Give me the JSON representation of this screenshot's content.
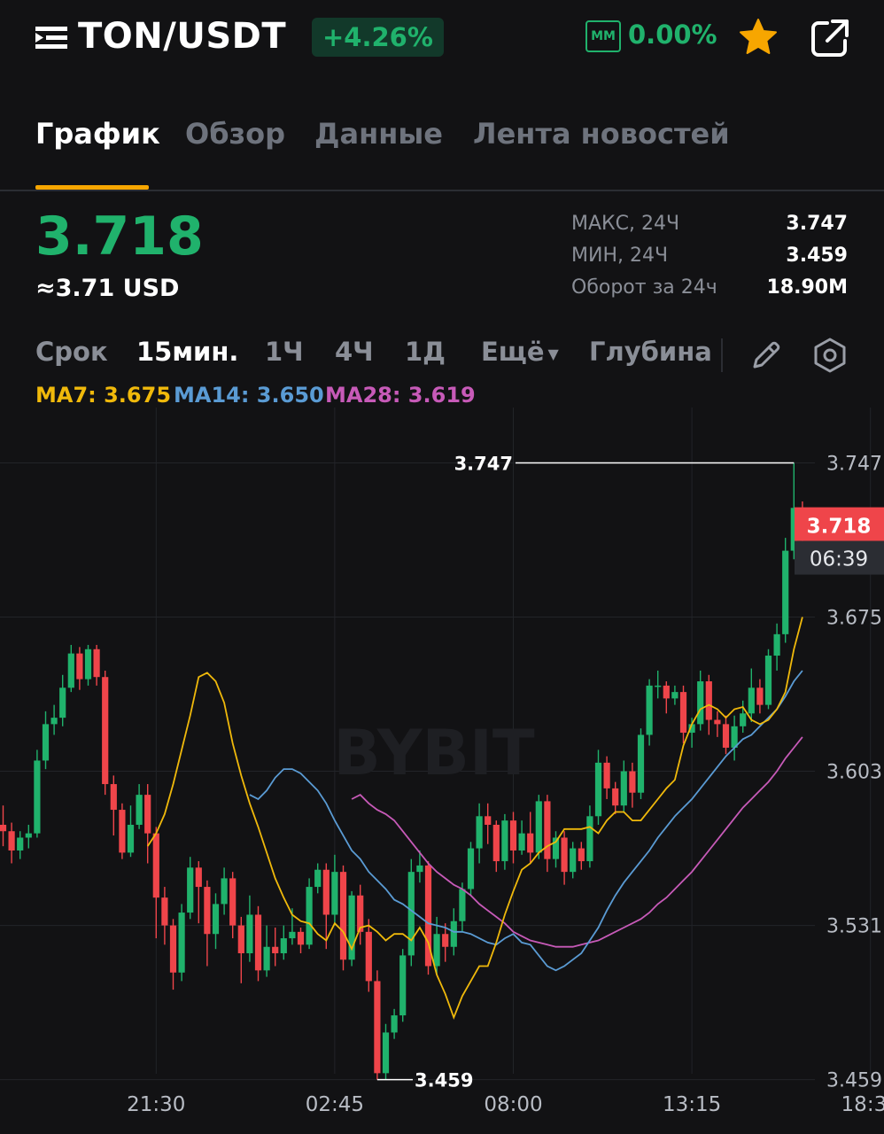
{
  "header": {
    "pair": "TON/USDT",
    "change": "+4.26%",
    "mm_label": "MM",
    "mm_value": "0.00%"
  },
  "tabs": [
    {
      "label": "График",
      "active": true
    },
    {
      "label": "Обзор",
      "active": false
    },
    {
      "label": "Данные",
      "active": false
    },
    {
      "label": "Лента новостей",
      "active": false
    }
  ],
  "price": {
    "last": "3.718",
    "usd": "≈3.71 USD"
  },
  "stats": [
    {
      "label": "МАКС, 24Ч",
      "value": "3.747"
    },
    {
      "label": "МИН, 24Ч",
      "value": "3.459"
    },
    {
      "label": "Оборот за 24ч",
      "value": "18.90M"
    }
  ],
  "intervals": {
    "label": "Срок",
    "items": [
      "15мин.",
      "1Ч",
      "4Ч",
      "1Д"
    ],
    "active": "15мин.",
    "more": "Ещё",
    "depth": "Глубина"
  },
  "ma": [
    {
      "label": "MA7: 3.675",
      "color": "#f0b90b"
    },
    {
      "label": "MA14: 3.650",
      "color": "#5a9bd4"
    },
    {
      "label": "MA28: 3.619",
      "color": "#c75ab8"
    }
  ],
  "colors": {
    "up": "#20b26c",
    "down": "#ef454a",
    "ma7": "#f0b90b",
    "ma14": "#5a9bd4",
    "ma28": "#c75ab8"
  },
  "chart_data": {
    "type": "candlestick",
    "title": "TON/USDT 15мин.",
    "watermark": "BYBIT",
    "ylim": [
      3.44,
      3.765
    ],
    "y_ticks": [
      "3.747",
      "3.675",
      "3.603",
      "3.531",
      "3.459"
    ],
    "y_tick_values": [
      3.747,
      3.675,
      3.603,
      3.531,
      3.459
    ],
    "x_ticks": [
      "21:30",
      "02:45",
      "08:00",
      "13:15",
      "18:30"
    ],
    "x_tick_index": [
      18,
      39,
      60,
      81,
      102
    ],
    "high_label": "3.747",
    "low_label": "3.459",
    "current_price": "3.718",
    "countdown": "06:39",
    "candles": [
      [
        3.578,
        3.575,
        3.587,
        3.568
      ],
      [
        3.575,
        3.566,
        3.579,
        3.56
      ],
      [
        3.566,
        3.572,
        3.575,
        3.562
      ],
      [
        3.572,
        3.574,
        3.578,
        3.567
      ],
      [
        3.574,
        3.608,
        3.613,
        3.572
      ],
      [
        3.608,
        3.625,
        3.631,
        3.604
      ],
      [
        3.625,
        3.628,
        3.634,
        3.62
      ],
      [
        3.628,
        3.642,
        3.648,
        3.624
      ],
      [
        3.642,
        3.658,
        3.662,
        3.64
      ],
      [
        3.658,
        3.646,
        3.661,
        3.641
      ],
      [
        3.646,
        3.66,
        3.662,
        3.643
      ],
      [
        3.66,
        3.647,
        3.662,
        3.643
      ],
      [
        3.647,
        3.597,
        3.65,
        3.592
      ],
      [
        3.597,
        3.585,
        3.601,
        3.573
      ],
      [
        3.585,
        3.565,
        3.588,
        3.562
      ],
      [
        3.565,
        3.578,
        3.587,
        3.563
      ],
      [
        3.578,
        3.592,
        3.597,
        3.576
      ],
      [
        3.592,
        3.574,
        3.597,
        3.56
      ],
      [
        3.574,
        3.544,
        3.577,
        3.525
      ],
      [
        3.544,
        3.531,
        3.549,
        3.522
      ],
      [
        3.531,
        3.509,
        3.534,
        3.501
      ],
      [
        3.509,
        3.537,
        3.541,
        3.505
      ],
      [
        3.537,
        3.558,
        3.563,
        3.534
      ],
      [
        3.558,
        3.549,
        3.561,
        3.532
      ],
      [
        3.549,
        3.527,
        3.552,
        3.512
      ],
      [
        3.527,
        3.541,
        3.546,
        3.52
      ],
      [
        3.541,
        3.553,
        3.558,
        3.536
      ],
      [
        3.553,
        3.531,
        3.556,
        3.525
      ],
      [
        3.531,
        3.518,
        3.535,
        3.504
      ],
      [
        3.518,
        3.536,
        3.545,
        3.514
      ],
      [
        3.536,
        3.51,
        3.54,
        3.505
      ],
      [
        3.51,
        3.521,
        3.531,
        3.507
      ],
      [
        3.521,
        3.518,
        3.53,
        3.512
      ],
      [
        3.518,
        3.525,
        3.531,
        3.515
      ],
      [
        3.525,
        3.528,
        3.539,
        3.522
      ],
      [
        3.528,
        3.522,
        3.53,
        3.518
      ],
      [
        3.522,
        3.549,
        3.553,
        3.52
      ],
      [
        3.549,
        3.557,
        3.56,
        3.546
      ],
      [
        3.557,
        3.536,
        3.56,
        3.52
      ],
      [
        3.536,
        3.556,
        3.564,
        3.531
      ],
      [
        3.556,
        3.515,
        3.559,
        3.51
      ],
      [
        3.515,
        3.545,
        3.547,
        3.512
      ],
      [
        3.545,
        3.528,
        3.55,
        3.522
      ],
      [
        3.528,
        3.505,
        3.534,
        3.5
      ],
      [
        3.505,
        3.462,
        3.51,
        3.459
      ],
      [
        3.462,
        3.481,
        3.485,
        3.459
      ],
      [
        3.481,
        3.489,
        3.492,
        3.478
      ],
      [
        3.489,
        3.517,
        3.52,
        3.486
      ],
      [
        3.517,
        3.556,
        3.562,
        3.512
      ],
      [
        3.556,
        3.559,
        3.566,
        3.551
      ],
      [
        3.559,
        3.512,
        3.561,
        3.508
      ],
      [
        3.512,
        3.527,
        3.535,
        3.508
      ],
      [
        3.527,
        3.521,
        3.532,
        3.514
      ],
      [
        3.521,
        3.533,
        3.539,
        3.517
      ],
      [
        3.533,
        3.548,
        3.551,
        3.528
      ],
      [
        3.548,
        3.567,
        3.57,
        3.545
      ],
      [
        3.567,
        3.582,
        3.588,
        3.56
      ],
      [
        3.582,
        3.578,
        3.588,
        3.569
      ],
      [
        3.578,
        3.561,
        3.58,
        3.556
      ],
      [
        3.561,
        3.58,
        3.583,
        3.557
      ],
      [
        3.58,
        3.566,
        3.584,
        3.56
      ],
      [
        3.566,
        3.574,
        3.58,
        3.564
      ],
      [
        3.574,
        3.565,
        3.584,
        3.56
      ],
      [
        3.565,
        3.589,
        3.592,
        3.562
      ],
      [
        3.589,
        3.562,
        3.592,
        3.556
      ],
      [
        3.562,
        3.572,
        3.575,
        3.558
      ],
      [
        3.572,
        3.556,
        3.575,
        3.55
      ],
      [
        3.556,
        3.567,
        3.57,
        3.553
      ],
      [
        3.567,
        3.561,
        3.57,
        3.557
      ],
      [
        3.561,
        3.582,
        3.587,
        3.558
      ],
      [
        3.582,
        3.607,
        3.613,
        3.578
      ],
      [
        3.607,
        3.595,
        3.61,
        3.59
      ],
      [
        3.595,
        3.587,
        3.598,
        3.583
      ],
      [
        3.587,
        3.603,
        3.608,
        3.584
      ],
      [
        3.603,
        3.593,
        3.607,
        3.586
      ],
      [
        3.593,
        3.62,
        3.623,
        3.59
      ],
      [
        3.62,
        3.643,
        3.646,
        3.615
      ],
      [
        3.643,
        3.643,
        3.65,
        3.637
      ],
      [
        3.643,
        3.637,
        3.645,
        3.63
      ],
      [
        3.637,
        3.64,
        3.643,
        3.634
      ],
      [
        3.64,
        3.621,
        3.643,
        3.616
      ],
      [
        3.621,
        3.625,
        3.628,
        3.614
      ],
      [
        3.625,
        3.645,
        3.65,
        3.622
      ],
      [
        3.645,
        3.627,
        3.648,
        3.62
      ],
      [
        3.627,
        3.625,
        3.631,
        3.619
      ],
      [
        3.625,
        3.614,
        3.629,
        3.611
      ],
      [
        3.614,
        3.624,
        3.629,
        3.608
      ],
      [
        3.624,
        3.63,
        3.636,
        3.621
      ],
      [
        3.63,
        3.642,
        3.651,
        3.626
      ],
      [
        3.642,
        3.634,
        3.646,
        3.63
      ],
      [
        3.634,
        3.657,
        3.66,
        3.632
      ],
      [
        3.657,
        3.667,
        3.672,
        3.65
      ],
      [
        3.667,
        3.706,
        3.712,
        3.663
      ],
      [
        3.706,
        3.726,
        3.747,
        3.702
      ],
      [
        3.726,
        3.718,
        3.729,
        3.71
      ]
    ],
    "ma7_values": [
      3.568,
      3.574,
      3.583,
      3.597,
      3.613,
      3.629,
      3.647,
      3.649,
      3.645,
      3.635,
      3.616,
      3.601,
      3.588,
      3.577,
      3.565,
      3.553,
      3.544,
      3.536,
      3.533,
      3.532,
      3.527,
      3.524,
      3.532,
      3.528,
      3.52,
      3.53,
      3.531,
      3.528,
      3.524,
      3.527,
      3.527,
      3.524,
      3.53,
      3.523,
      3.508,
      3.499,
      3.488,
      3.498,
      3.505,
      3.512,
      3.512,
      3.523,
      3.536,
      3.547,
      3.557,
      3.56,
      3.565,
      3.568,
      3.57,
      3.576,
      3.576,
      3.576,
      3.577,
      3.574,
      3.58,
      3.584,
      3.584,
      3.58,
      3.58,
      3.585,
      3.59,
      3.595,
      3.599,
      3.615,
      3.625,
      3.632,
      3.634,
      3.632,
      3.628,
      3.632,
      3.633,
      3.627,
      3.625,
      3.627,
      3.632,
      3.64,
      3.66,
      3.675
    ],
    "ma14_values": [
      3.592,
      3.59,
      3.594,
      3.6,
      3.604,
      3.604,
      3.602,
      3.598,
      3.594,
      3.588,
      3.58,
      3.573,
      3.566,
      3.562,
      3.556,
      3.552,
      3.548,
      3.543,
      3.541,
      3.538,
      3.535,
      3.532,
      3.531,
      3.53,
      3.528,
      3.528,
      3.527,
      3.525,
      3.523,
      3.522,
      3.525,
      3.527,
      3.523,
      3.522,
      3.517,
      3.512,
      3.51,
      3.512,
      3.515,
      3.518,
      3.524,
      3.53,
      3.538,
      3.545,
      3.551,
      3.556,
      3.561,
      3.566,
      3.572,
      3.577,
      3.582,
      3.586,
      3.59,
      3.595,
      3.6,
      3.605,
      3.61,
      3.614,
      3.618,
      3.62,
      3.624,
      3.628,
      3.632,
      3.638,
      3.645,
      3.65
    ],
    "ma28_values": [
      3.59,
      3.592,
      3.588,
      3.585,
      3.583,
      3.58,
      3.575,
      3.57,
      3.565,
      3.56,
      3.556,
      3.553,
      3.55,
      3.548,
      3.545,
      3.541,
      3.538,
      3.535,
      3.532,
      3.528,
      3.526,
      3.524,
      3.523,
      3.522,
      3.521,
      3.521,
      3.521,
      3.522,
      3.523,
      3.524,
      3.526,
      3.528,
      3.53,
      3.532,
      3.534,
      3.537,
      3.541,
      3.544,
      3.548,
      3.552,
      3.556,
      3.561,
      3.566,
      3.571,
      3.576,
      3.581,
      3.586,
      3.59,
      3.594,
      3.598,
      3.603,
      3.609,
      3.614,
      3.619
    ],
    "ma7_start_index": 17,
    "ma14_start_index": 29,
    "ma28_start_index": 41
  }
}
